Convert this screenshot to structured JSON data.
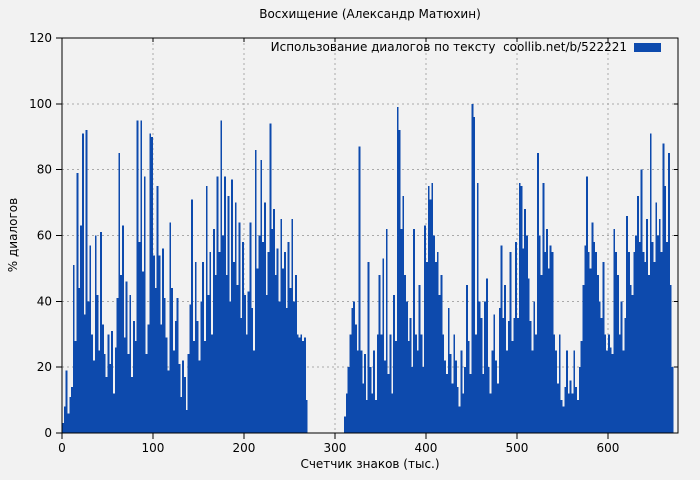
{
  "colors": {
    "background": "#f2f2f2",
    "bar": "#0d4aad",
    "grid": "#aaaaaa",
    "axis": "#000000"
  },
  "chart_data": {
    "type": "bar",
    "title": "Восхищение (Александр Матюхин)",
    "xlabel": "Счетчик знаков (тыс.)",
    "ylabel": "% диалогов",
    "legend_label": "Использование диалогов по тексту  coollib.net/b/522221",
    "legend_position": "top-right",
    "grid": "dashed",
    "xlim": [
      0,
      677
    ],
    "ylim": [
      0,
      120
    ],
    "x_ticks": [
      0,
      100,
      200,
      300,
      400,
      500,
      600
    ],
    "y_ticks": [
      0,
      20,
      40,
      60,
      80,
      100,
      120
    ],
    "bar_color": "#0d4aad",
    "x_start": 1,
    "x_step": 2,
    "values": [
      3,
      8,
      19,
      6,
      11,
      14,
      51,
      28,
      79,
      44,
      63,
      91,
      36,
      92,
      40,
      57,
      30,
      22,
      60,
      42,
      25,
      61,
      33,
      24,
      17,
      30,
      21,
      31,
      12,
      26,
      41,
      85,
      48,
      63,
      29,
      46,
      24,
      42,
      17,
      34,
      28,
      95,
      58,
      95,
      49,
      78,
      24,
      33,
      91,
      90,
      54,
      44,
      75,
      54,
      33,
      56,
      41,
      29,
      19,
      64,
      44,
      25,
      34,
      41,
      21,
      11,
      22,
      17,
      7,
      24,
      39,
      71,
      28,
      52,
      34,
      22,
      40,
      52,
      28,
      75,
      42,
      55,
      30,
      62,
      48,
      78,
      55,
      95,
      60,
      78,
      48,
      72,
      40,
      77,
      52,
      70,
      45,
      64,
      35,
      58,
      42,
      30,
      43,
      64,
      38,
      25,
      86,
      50,
      60,
      83,
      58,
      70,
      42,
      55,
      94,
      62,
      68,
      48,
      56,
      40,
      65,
      50,
      55,
      38,
      58,
      44,
      65,
      40,
      48,
      30,
      29,
      30,
      28,
      29,
      10,
      0,
      0,
      0,
      0,
      0,
      0,
      0,
      0,
      0,
      0,
      0,
      0,
      0,
      0,
      0,
      0,
      0,
      0,
      0,
      0,
      5,
      12,
      20,
      30,
      38,
      40,
      33,
      25,
      87,
      25,
      15,
      24,
      10,
      52,
      20,
      12,
      25,
      10,
      30,
      48,
      30,
      53,
      22,
      62,
      18,
      30,
      12,
      42,
      28,
      99,
      92,
      62,
      72,
      48,
      40,
      28,
      35,
      20,
      62,
      30,
      25,
      45,
      30,
      20,
      63,
      52,
      75,
      71,
      76,
      60,
      52,
      55,
      42,
      48,
      30,
      22,
      18,
      38,
      24,
      15,
      30,
      22,
      14,
      8,
      25,
      12,
      20,
      45,
      28,
      18,
      100,
      96,
      30,
      76,
      40,
      35,
      18,
      40,
      47,
      20,
      12,
      25,
      36,
      22,
      15,
      38,
      57,
      35,
      45,
      25,
      34,
      55,
      28,
      35,
      58,
      35,
      76,
      75,
      56,
      68,
      60,
      47,
      34,
      25,
      40,
      30,
      85,
      60,
      48,
      76,
      55,
      62,
      50,
      57,
      55,
      30,
      25,
      15,
      30,
      10,
      8,
      14,
      25,
      12,
      16,
      12,
      25,
      14,
      10,
      20,
      28,
      45,
      57,
      78,
      55,
      50,
      64,
      58,
      55,
      48,
      40,
      35,
      52,
      30,
      25,
      30,
      26,
      24,
      62,
      55,
      48,
      30,
      40,
      25,
      35,
      66,
      55,
      45,
      42,
      55,
      60,
      72,
      58,
      80,
      55,
      52,
      65,
      48,
      91,
      58,
      52,
      70,
      60,
      65,
      55,
      88,
      75,
      58,
      85,
      45,
      20
    ]
  }
}
